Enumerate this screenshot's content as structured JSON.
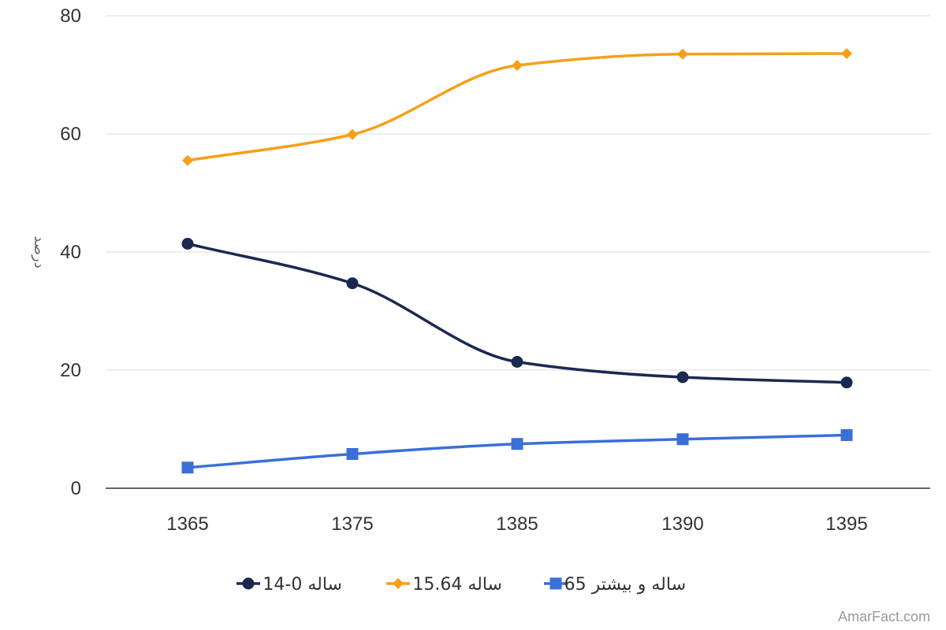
{
  "chart_data": {
    "type": "line",
    "categories": [
      "1365",
      "1375",
      "1385",
      "1390",
      "1395"
    ],
    "ylabel": "درصد",
    "ylim": [
      0,
      80
    ],
    "yticks": [
      0,
      20,
      40,
      60,
      80
    ],
    "grid": true,
    "legend_position": "bottom",
    "smooth": true,
    "series": [
      {
        "name": "ساله 0-14",
        "values": [
          41.4,
          34.7,
          21.4,
          18.8,
          17.9
        ],
        "color": "#1b2951",
        "marker": "circle"
      },
      {
        "name": "ساله 15.64",
        "values": [
          55.5,
          59.9,
          71.6,
          73.5,
          73.6
        ],
        "color": "#f5a01a",
        "marker": "diamond"
      },
      {
        "name": "ساله و بیشتر 65",
        "values": [
          3.5,
          5.8,
          7.5,
          8.3,
          9.0
        ],
        "color": "#3a6fd8",
        "marker": "square"
      }
    ]
  },
  "watermark": "AmarFact.com"
}
